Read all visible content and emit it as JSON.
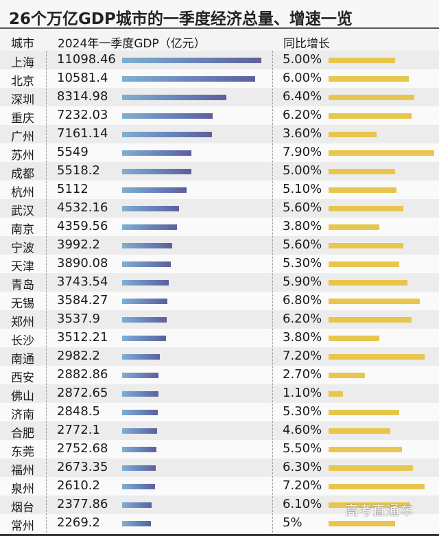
{
  "title": "26个万亿GDP城市的一季度经济总量、增速一览",
  "header": {
    "city": "城市",
    "gdp": "2024年一季度GDP（亿元）",
    "growth": "同比增长"
  },
  "watermark": "高考直通车",
  "colors": {
    "gdp_bar_start": "#7fb0cf",
    "gdp_bar_end": "#5e5f9c",
    "growth_bar": "#e8c64e",
    "row_alt": "#ececec",
    "row_base": "#fafafa"
  },
  "rows": [
    {
      "city": "上海",
      "gdp": "11098.46",
      "growth": "5.00%"
    },
    {
      "city": "北京",
      "gdp": "10581.4",
      "growth": "6.00%"
    },
    {
      "city": "深圳",
      "gdp": "8314.98",
      "growth": "6.40%"
    },
    {
      "city": "重庆",
      "gdp": "7232.03",
      "growth": "6.20%"
    },
    {
      "city": "广州",
      "gdp": "7161.14",
      "growth": "3.60%"
    },
    {
      "city": "苏州",
      "gdp": "5549",
      "growth": "7.90%"
    },
    {
      "city": "成都",
      "gdp": "5518.2",
      "growth": "5.00%"
    },
    {
      "city": "杭州",
      "gdp": "5112",
      "growth": "5.10%"
    },
    {
      "city": "武汉",
      "gdp": "4532.16",
      "growth": "5.60%"
    },
    {
      "city": "南京",
      "gdp": "4359.56",
      "growth": "3.80%"
    },
    {
      "city": "宁波",
      "gdp": "3992.2",
      "growth": "5.60%"
    },
    {
      "city": "天津",
      "gdp": "3890.08",
      "growth": "5.30%"
    },
    {
      "city": "青岛",
      "gdp": "3743.54",
      "growth": "5.90%"
    },
    {
      "city": "无锡",
      "gdp": "3584.27",
      "growth": "6.80%"
    },
    {
      "city": "郑州",
      "gdp": "3537.9",
      "growth": "6.20%"
    },
    {
      "city": "长沙",
      "gdp": "3512.21",
      "growth": "3.80%"
    },
    {
      "city": "南通",
      "gdp": "2982.2",
      "growth": "7.20%"
    },
    {
      "city": "西安",
      "gdp": "2882.86",
      "growth": "2.70%"
    },
    {
      "city": "佛山",
      "gdp": "2872.65",
      "growth": "1.10%"
    },
    {
      "city": "济南",
      "gdp": "2848.5",
      "growth": "5.30%"
    },
    {
      "city": "合肥",
      "gdp": "2772.1",
      "growth": "4.60%"
    },
    {
      "city": "东莞",
      "gdp": "2752.68",
      "growth": "5.50%"
    },
    {
      "city": "福州",
      "gdp": "2673.35",
      "growth": "6.30%"
    },
    {
      "city": "泉州",
      "gdp": "2610.2",
      "growth": "7.20%"
    },
    {
      "city": "烟台",
      "gdp": "2377.86",
      "growth": "6.10%"
    },
    {
      "city": "常州",
      "gdp": "2269.2",
      "growth": "5%"
    }
  ],
  "chart_data": {
    "type": "bar",
    "title": "26个万亿GDP城市的一季度经济总量、增速一览",
    "categories": [
      "上海",
      "北京",
      "深圳",
      "重庆",
      "广州",
      "苏州",
      "成都",
      "杭州",
      "武汉",
      "南京",
      "宁波",
      "天津",
      "青岛",
      "无锡",
      "郑州",
      "长沙",
      "南通",
      "西安",
      "佛山",
      "济南",
      "合肥",
      "东莞",
      "福州",
      "泉州",
      "烟台",
      "常州"
    ],
    "series": [
      {
        "name": "2024年一季度GDP（亿元）",
        "values": [
          11098.46,
          10581.4,
          8314.98,
          7232.03,
          7161.14,
          5549,
          5518.2,
          5112,
          4532.16,
          4359.56,
          3992.2,
          3890.08,
          3743.54,
          3584.27,
          3537.9,
          3512.21,
          2982.2,
          2882.86,
          2872.65,
          2848.5,
          2772.1,
          2752.68,
          2673.35,
          2610.2,
          2377.86,
          2269.2
        ]
      },
      {
        "name": "同比增长（%）",
        "values": [
          5.0,
          6.0,
          6.4,
          6.2,
          3.6,
          7.9,
          5.0,
          5.1,
          5.6,
          3.8,
          5.6,
          5.3,
          5.9,
          6.8,
          6.2,
          3.8,
          7.2,
          2.7,
          1.1,
          5.3,
          4.6,
          5.5,
          6.3,
          7.2,
          6.1,
          5.0
        ]
      }
    ],
    "orientation": "horizontal",
    "xlabel": "",
    "ylabel": "城市",
    "grid": false,
    "legend": "none (column headers)"
  }
}
